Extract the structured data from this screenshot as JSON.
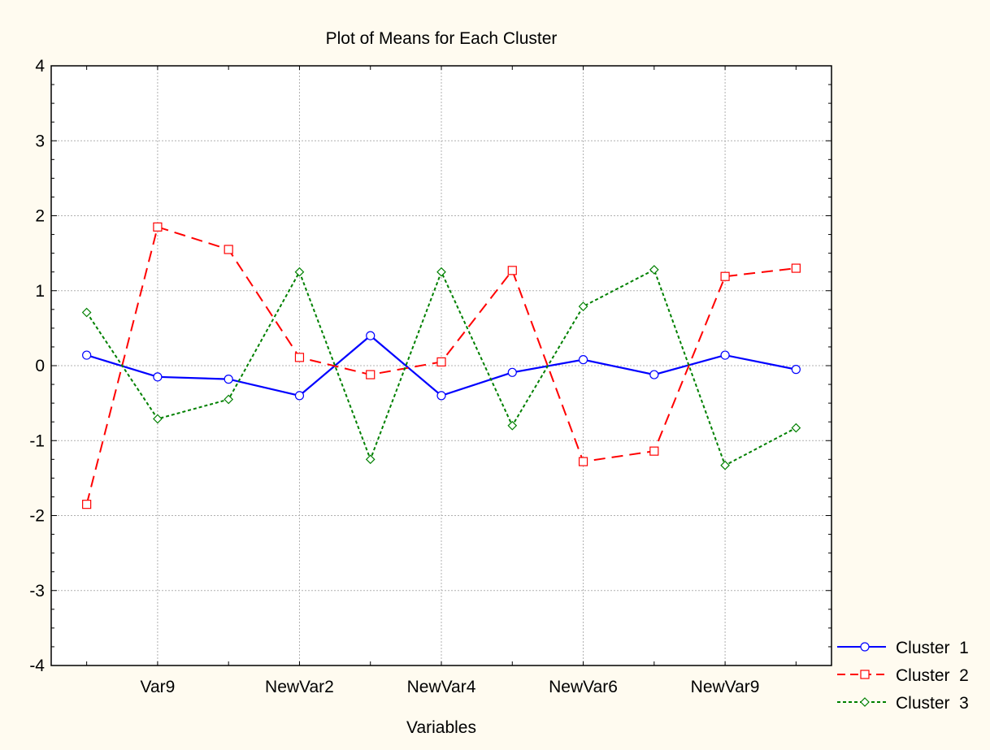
{
  "chart_data": {
    "type": "line",
    "title": "Plot of Means for Each Cluster",
    "xlabel": "Variables",
    "ylabel": "",
    "ylim": [
      -4,
      4
    ],
    "yticks": [
      -4,
      -3,
      -2,
      -1,
      0,
      1,
      2,
      3,
      4
    ],
    "categories": [
      "",
      "Var9",
      "",
      "NewVar2",
      "",
      "NewVar4",
      "",
      "NewVar6",
      "",
      "NewVar9",
      ""
    ],
    "grid": true,
    "legend_position": "bottom-right",
    "series": [
      {
        "name": "Cluster  1",
        "color": "#0000ff",
        "marker": "circle",
        "dash": "solid",
        "values": [
          0.14,
          -0.15,
          -0.18,
          -0.4,
          0.4,
          -0.4,
          -0.09,
          0.08,
          -0.12,
          0.14,
          -0.05
        ]
      },
      {
        "name": "Cluster  2",
        "color": "#ff0000",
        "marker": "square",
        "dash": "dashed",
        "values": [
          -1.85,
          1.85,
          1.55,
          0.11,
          -0.12,
          0.05,
          1.27,
          -1.28,
          -1.14,
          1.19,
          1.3
        ]
      },
      {
        "name": "Cluster  3",
        "color": "#008000",
        "marker": "diamond",
        "dash": "dotted",
        "values": [
          0.71,
          -0.71,
          -0.45,
          1.25,
          -1.25,
          1.25,
          -0.8,
          0.79,
          1.28,
          -1.33,
          -0.83
        ]
      }
    ]
  }
}
